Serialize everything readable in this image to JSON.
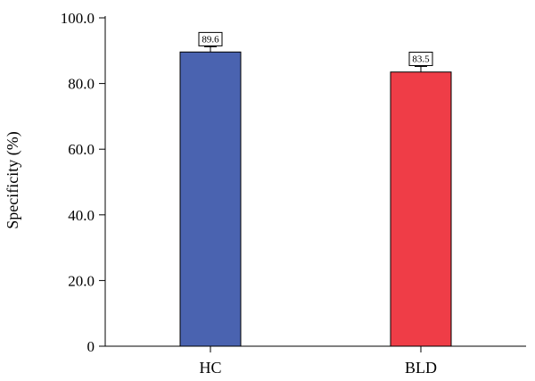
{
  "chart_data": {
    "type": "bar",
    "categories": [
      "HC",
      "BLD"
    ],
    "values": [
      89.6,
      83.5
    ],
    "data_labels": [
      "89.6",
      "83.5"
    ],
    "error_upper": [
      91.2,
      85.2
    ],
    "colors": [
      "#4a63b0",
      "#ef3d47"
    ],
    "ylabel": "Specificity (%)",
    "xlabel": "",
    "ylim": [
      0,
      100
    ],
    "yticks": [
      0,
      20,
      40,
      60,
      80,
      100
    ],
    "ytick_labels": [
      "0",
      "20.0",
      "40.0",
      "60.0",
      "80.0",
      "100.0"
    ],
    "grid": false,
    "legend": "none"
  }
}
